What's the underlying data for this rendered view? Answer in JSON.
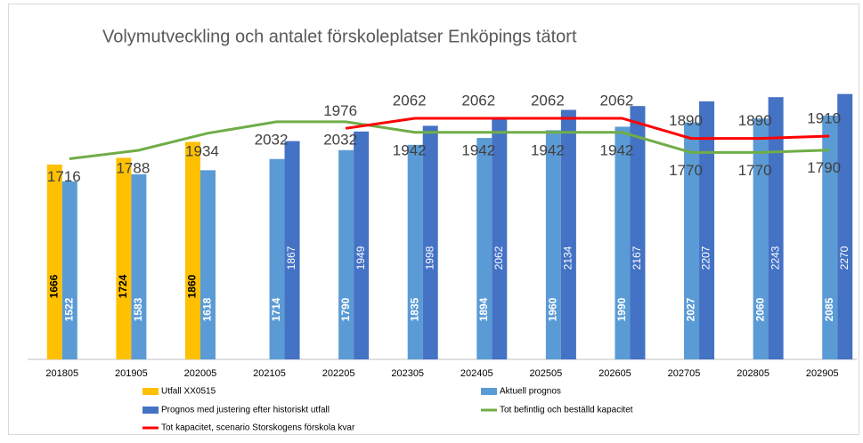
{
  "chart_data": {
    "type": "bar",
    "title": "Volymutveckling och antalet förskoleplatser Enköpings tätort",
    "categories": [
      "201805",
      "201905",
      "202005",
      "202105",
      "202205",
      "202305",
      "202405",
      "202505",
      "202605",
      "202705",
      "202805",
      "202905"
    ],
    "ylim": [
      0,
      2800
    ],
    "series": [
      {
        "name": "Utfall XX0515",
        "type": "bar",
        "color": "#ffc000",
        "values": [
          1666,
          1724,
          1860,
          null,
          null,
          null,
          null,
          null,
          null,
          null,
          null,
          null
        ]
      },
      {
        "name": "Aktuell prognos",
        "type": "bar",
        "color": "#5b9bd5",
        "values": [
          1522,
          1583,
          1618,
          1714,
          1790,
          1835,
          1894,
          1960,
          1990,
          2027,
          2060,
          2085
        ]
      },
      {
        "name": "Prognos med justering efter historiskt utfall",
        "type": "bar",
        "color": "#4472c4",
        "values": [
          null,
          null,
          null,
          1867,
          1949,
          1998,
          2062,
          2134,
          2167,
          2207,
          2243,
          2270
        ]
      },
      {
        "name": "Tot befintlig och beställd kapacitet",
        "type": "line",
        "color": "#70ad47",
        "values": [
          1716,
          1788,
          1934,
          2032,
          2032,
          1942,
          1942,
          1942,
          1942,
          1770,
          1770,
          1790
        ]
      },
      {
        "name": "Tot kapacitet, scenario Storskogens förskola kvar",
        "type": "line",
        "color": "#ff0000",
        "values": [
          null,
          null,
          null,
          null,
          1976,
          2062,
          2062,
          2062,
          2062,
          1890,
          1890,
          1910
        ]
      }
    ]
  }
}
